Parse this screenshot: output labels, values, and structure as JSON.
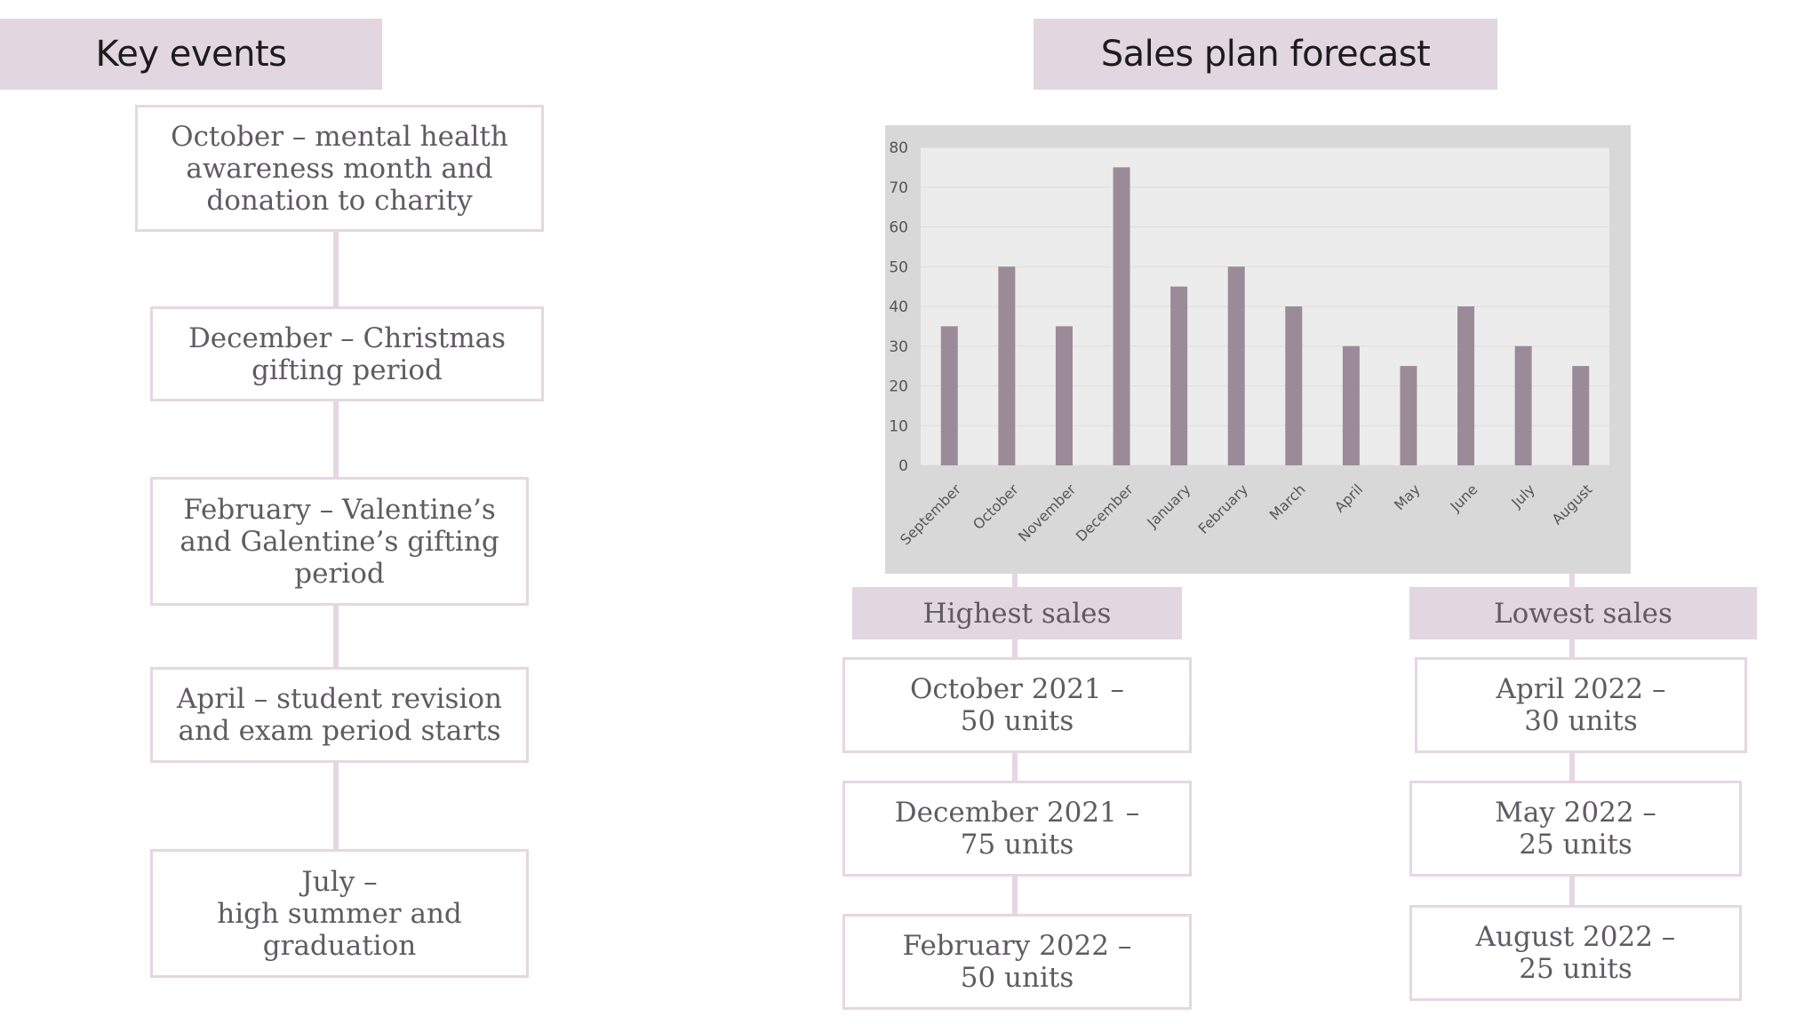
{
  "key_events": {
    "title": "Key events",
    "items": [
      "October – mental health awareness month and donation to charity",
      "December – Christmas gifting period",
      "February – Valentine’s and Galentine’s gifting period",
      "April – student revision and exam period starts",
      "July –\nhigh summer and graduation"
    ]
  },
  "sales": {
    "title": "Sales plan forecast",
    "highest_label": "Highest sales",
    "lowest_label": "Lowest sales",
    "highest": [
      "October 2021 –\n50 units",
      "December 2021 –\n75 units",
      "February 2022  –\n50 units"
    ],
    "lowest": [
      "April 2022 –\n30 units",
      "May 2022 –\n25 units",
      "August 2022 –\n25 units"
    ]
  },
  "colors": {
    "accent": "#e2d6e0",
    "border": "#e6d6e3",
    "bar": "#9b8b98",
    "chart_bg": "#d8d8d8",
    "plot_bg": "#ececec"
  },
  "chart_data": {
    "type": "bar",
    "categories": [
      "September",
      "October",
      "November",
      "December",
      "January",
      "February",
      "March",
      "April",
      "May",
      "June",
      "July",
      "August"
    ],
    "values": [
      35,
      50,
      35,
      75,
      45,
      50,
      40,
      30,
      25,
      40,
      30,
      25
    ],
    "ylim": [
      0,
      80
    ],
    "yticks": [
      0,
      10,
      20,
      30,
      40,
      50,
      60,
      70,
      80
    ],
    "grid": true,
    "legend": "none"
  }
}
